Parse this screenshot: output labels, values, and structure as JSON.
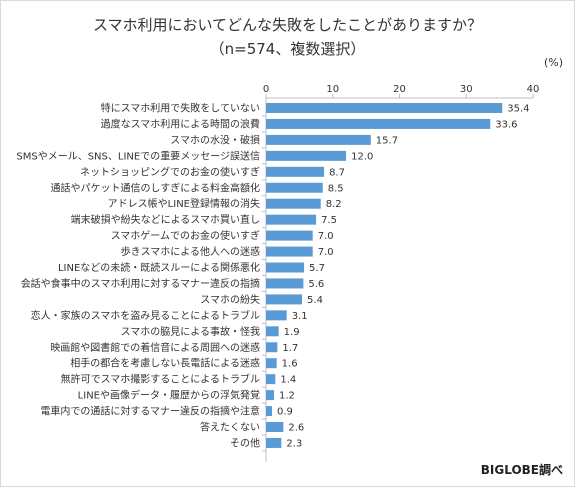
{
  "title_line1": "スマホ利用においてどんな失敗をしたことがありますか？",
  "title_line2": "（n=574、複数選択）",
  "unit": "(%)",
  "source": "BIGLOBE調べ",
  "bar_color": "#5b9bd5",
  "chart_data": {
    "type": "bar",
    "orientation": "horizontal",
    "title": "スマホ利用においてどんな失敗をしたことがありますか？",
    "subtitle": "（n=574、複数選択）",
    "xlim": [
      0,
      40
    ],
    "ticks": [
      0,
      10,
      20,
      30,
      40
    ],
    "unit": "(%)",
    "grid": false,
    "categories": [
      "特にスマホ利用で失敗をしていない",
      "過度なスマホ利用による時間の浪費",
      "スマホの水没・破損",
      "SMSやメール、SNS、LINEでの重要メッセージ誤送信",
      "ネットショッピングでのお金の使いすぎ",
      "通話やパケット通信のしすぎによる料金高額化",
      "アドレス帳やLINE登録情報の消失",
      "端末破損や紛失などによるスマホ買い直し",
      "スマホゲームでのお金の使いすぎ",
      "歩きスマホによる他人への迷惑",
      "LINEなどの未読・既読スルーによる関係悪化",
      "会話や食事中のスマホ利用に対するマナー違反の指摘",
      "スマホの紛失",
      "恋人・家族のスマホを盗み見ることによるトラブル",
      "スマホの脇見による事故・怪我",
      "映画館や図書館での着信音による周囲への迷惑",
      "相手の都合を考慮しない長電話による迷惑",
      "無許可でスマホ撮影することによるトラブル",
      "LINEや画像データ・履歴からの浮気発覚",
      "電車内での通話に対するマナー違反の指摘や注意",
      "答えたくない",
      "その他"
    ],
    "values": [
      35.4,
      33.6,
      15.7,
      12.0,
      8.7,
      8.5,
      8.2,
      7.5,
      7.0,
      7.0,
      5.7,
      5.6,
      5.4,
      3.1,
      1.9,
      1.7,
      1.6,
      1.4,
      1.2,
      0.9,
      2.6,
      2.3
    ],
    "value_labels": [
      "35.4",
      "33.6",
      "15.7",
      "12.0",
      "8.7",
      "8.5",
      "8.2",
      "7.5",
      "7.0",
      "7.0",
      "5.7",
      "5.6",
      "5.4",
      "3.1",
      "1.9",
      "1.7",
      "1.6",
      "1.4",
      "1.2",
      "0.9",
      "2.6",
      "2.3"
    ]
  }
}
